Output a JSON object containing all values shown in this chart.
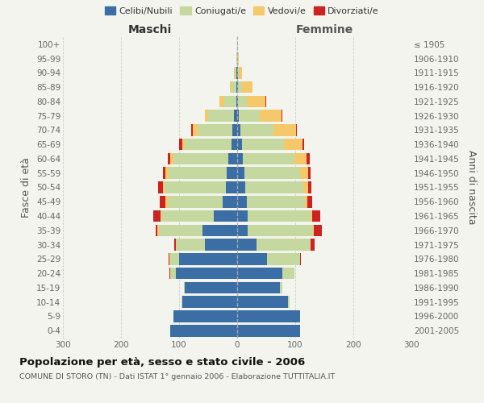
{
  "age_groups_bottom_to_top": [
    "0-4",
    "5-9",
    "10-14",
    "15-19",
    "20-24",
    "25-29",
    "30-34",
    "35-39",
    "40-44",
    "45-49",
    "50-54",
    "55-59",
    "60-64",
    "65-69",
    "70-74",
    "75-79",
    "80-84",
    "85-89",
    "90-94",
    "95-99",
    "100+"
  ],
  "birth_years_bottom_to_top": [
    "2001-2005",
    "1996-2000",
    "1991-1995",
    "1986-1990",
    "1981-1985",
    "1976-1980",
    "1971-1975",
    "1966-1970",
    "1961-1965",
    "1956-1960",
    "1951-1955",
    "1946-1950",
    "1941-1945",
    "1936-1940",
    "1931-1935",
    "1926-1930",
    "1921-1925",
    "1916-1920",
    "1911-1915",
    "1906-1910",
    "≤ 1905"
  ],
  "maschi": {
    "celibi": [
      115,
      110,
      95,
      90,
      105,
      100,
      55,
      60,
      40,
      25,
      20,
      18,
      15,
      10,
      8,
      5,
      2,
      2,
      1,
      0,
      0
    ],
    "coniugati": [
      0,
      0,
      1,
      2,
      10,
      15,
      50,
      75,
      90,
      95,
      105,
      100,
      95,
      80,
      60,
      45,
      20,
      8,
      3,
      1,
      0
    ],
    "vedovi": [
      0,
      0,
      0,
      0,
      0,
      1,
      1,
      2,
      2,
      3,
      3,
      5,
      5,
      5,
      8,
      5,
      8,
      3,
      1,
      0,
      0
    ],
    "divorziati": [
      0,
      0,
      0,
      0,
      1,
      2,
      3,
      3,
      12,
      10,
      8,
      5,
      5,
      5,
      3,
      0,
      0,
      0,
      0,
      0,
      0
    ]
  },
  "femmine": {
    "nubili": [
      108,
      108,
      88,
      73,
      78,
      52,
      33,
      18,
      18,
      16,
      14,
      12,
      10,
      8,
      5,
      3,
      2,
      2,
      1,
      0,
      0
    ],
    "coniugate": [
      0,
      0,
      2,
      5,
      20,
      56,
      92,
      112,
      108,
      100,
      100,
      96,
      88,
      72,
      58,
      36,
      15,
      6,
      2,
      1,
      0
    ],
    "vedove": [
      0,
      0,
      0,
      0,
      0,
      0,
      1,
      2,
      3,
      5,
      8,
      14,
      22,
      32,
      38,
      38,
      32,
      18,
      6,
      2,
      0
    ],
    "divorziate": [
      0,
      0,
      0,
      0,
      1,
      2,
      8,
      14,
      14,
      8,
      6,
      5,
      5,
      3,
      2,
      1,
      1,
      0,
      0,
      0,
      0
    ]
  },
  "colors": {
    "celibi_nubili": "#3a6ea5",
    "coniugati": "#c5d8a0",
    "vedovi": "#f5c96a",
    "divorziati": "#cc2222"
  },
  "xlim": 300,
  "title": "Popolazione per età, sesso e stato civile - 2006",
  "subtitle": "COMUNE DI STORO (TN) - Dati ISTAT 1° gennaio 2006 - Elaborazione TUTTITALIA.IT",
  "ylabel_left": "Fasce di età",
  "ylabel_right": "Anni di nascita",
  "xlabel_maschi": "Maschi",
  "xlabel_femmine": "Femmine",
  "legend_labels": [
    "Celibi/Nubili",
    "Coniugati/e",
    "Vedovi/e",
    "Divorziati/e"
  ],
  "bg_color": "#f4f4ef",
  "grid_color": "#cccccc",
  "xticks": [
    -300,
    -200,
    -100,
    0,
    100,
    200,
    300
  ]
}
